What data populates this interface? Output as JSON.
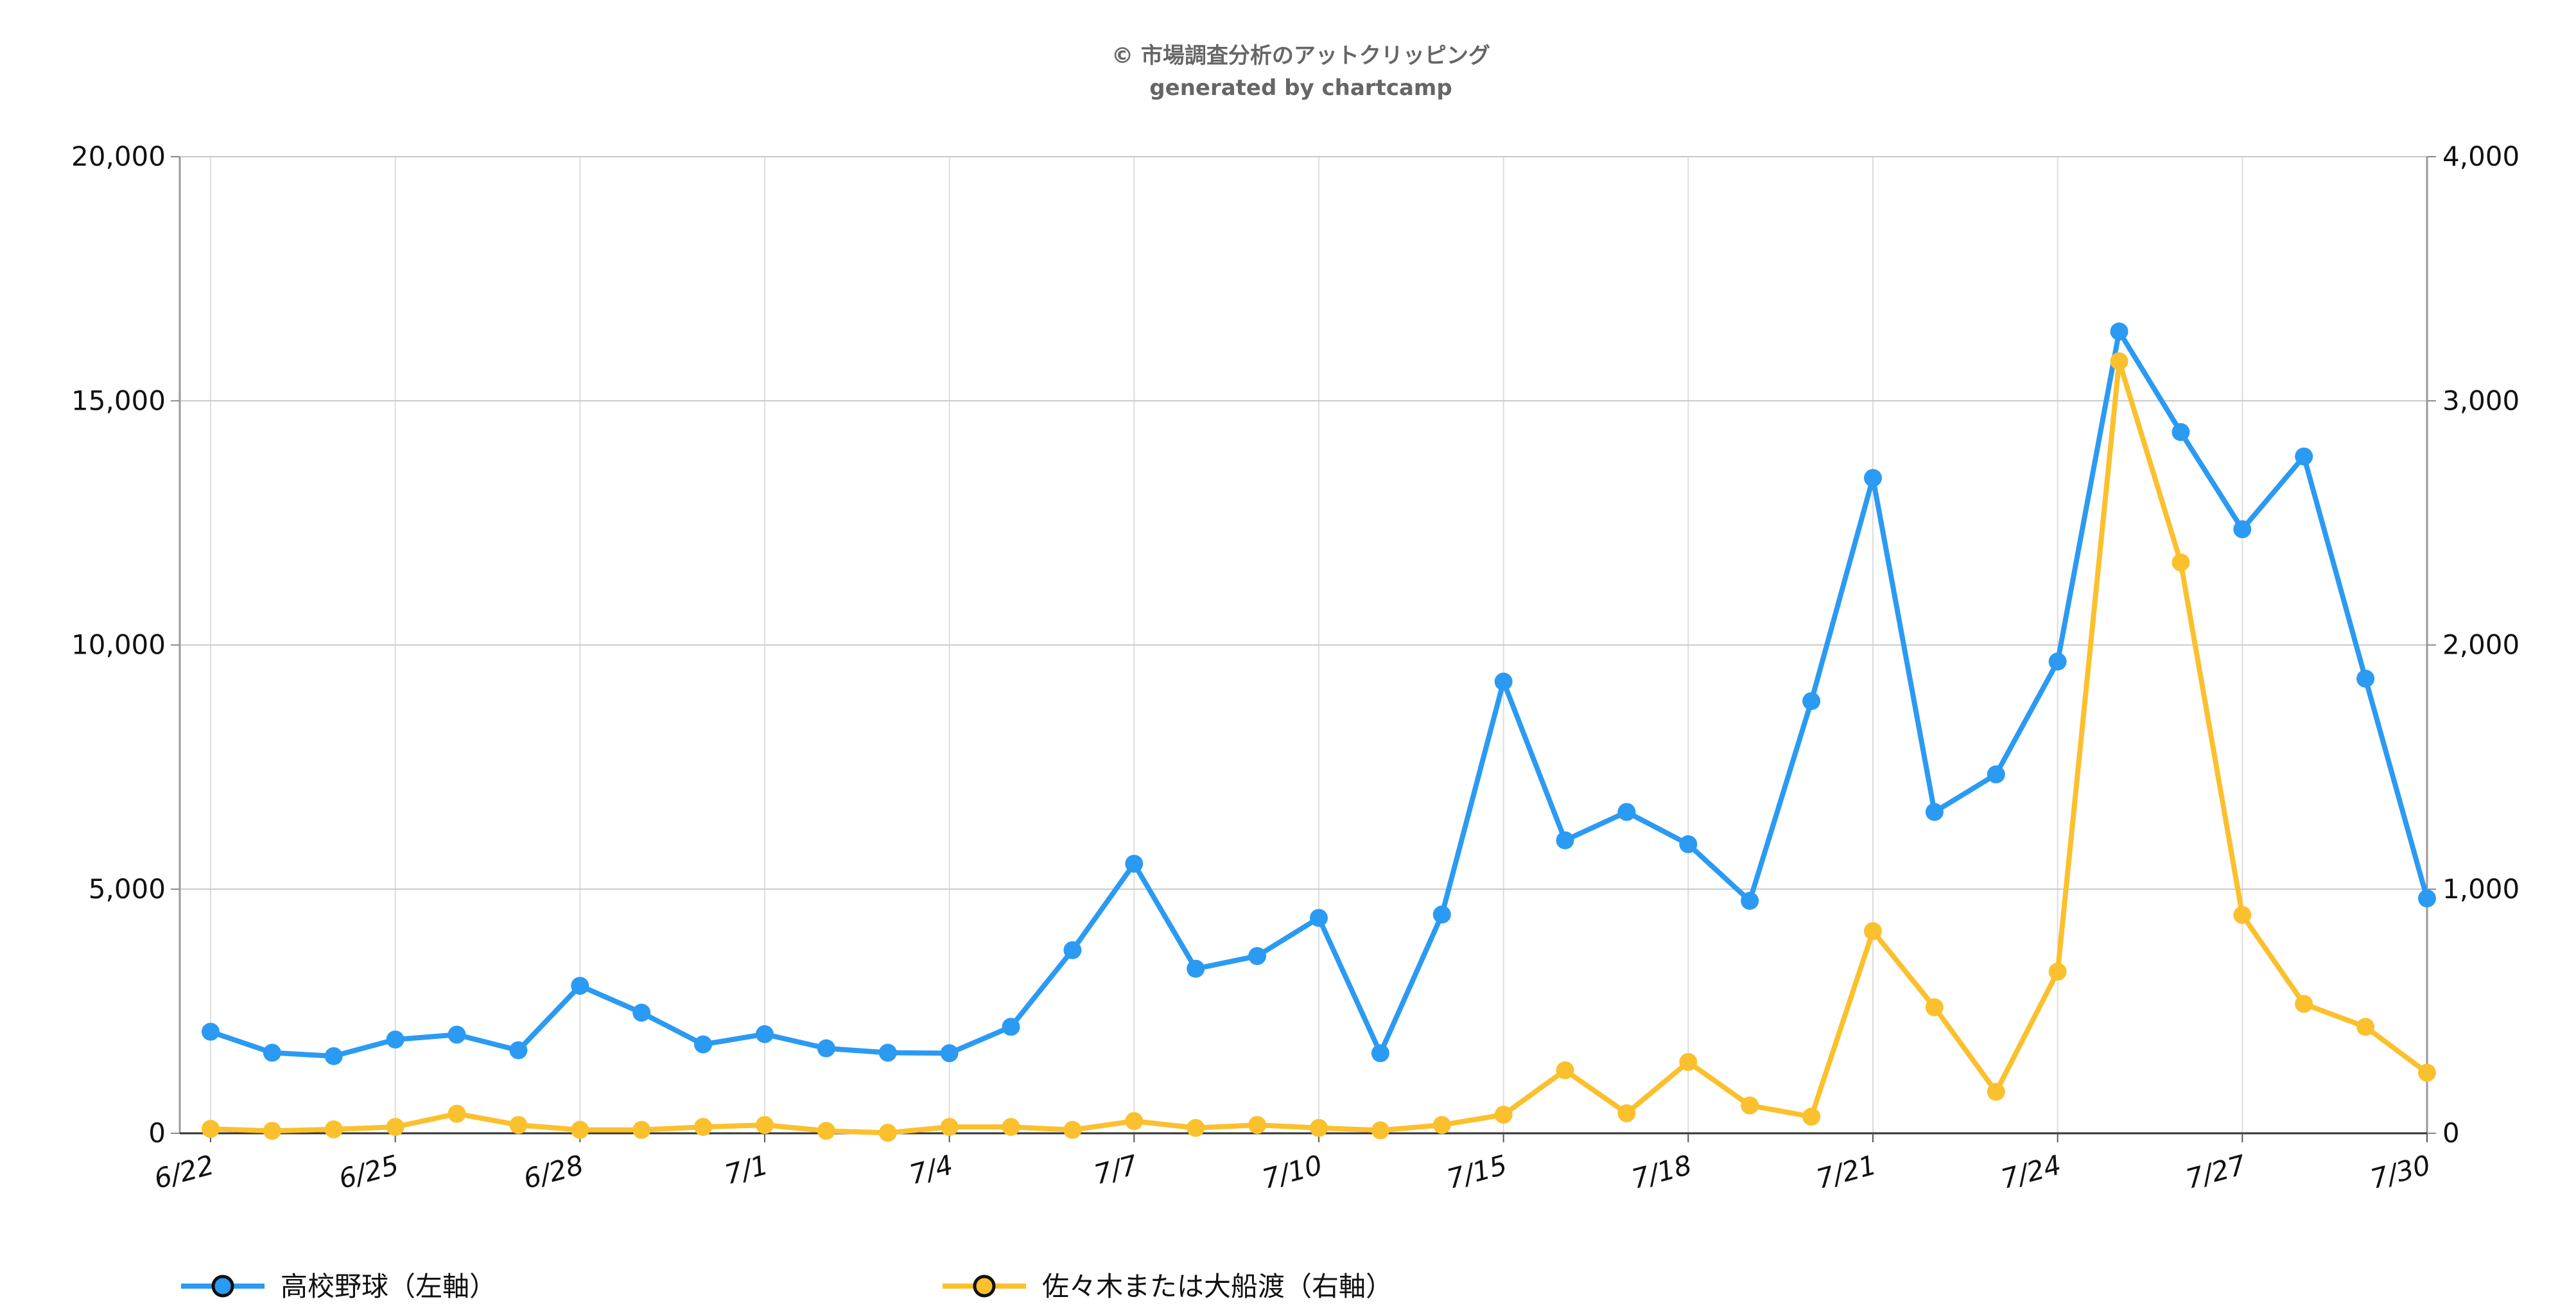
{
  "credit": {
    "line1": "© 市場調査分析のアットクリッピング",
    "line2": "generated by chartcamp"
  },
  "chart_data": {
    "type": "line",
    "title": "",
    "xlabel": "",
    "ylabel_left": "",
    "ylabel_right": "",
    "x": [
      "6/22",
      "6/23",
      "6/24",
      "6/25",
      "6/26",
      "6/27",
      "6/28",
      "6/29",
      "6/30",
      "7/1",
      "7/2",
      "7/3",
      "7/4",
      "7/5",
      "7/6",
      "7/7",
      "7/8",
      "7/9",
      "7/10",
      "7/11",
      "7/14",
      "7/15",
      "7/16",
      "7/17",
      "7/18",
      "7/19",
      "7/20",
      "7/21",
      "7/22",
      "7/23",
      "7/24",
      "7/25",
      "7/26",
      "7/27",
      "7/28",
      "7/29",
      "7/30"
    ],
    "x_tick_labels": [
      "6/22",
      "6/25",
      "6/28",
      "7/1",
      "7/4",
      "7/7",
      "7/10",
      "7/15",
      "7/18",
      "7/21",
      "7/24",
      "7/27",
      "7/30"
    ],
    "y_left": {
      "lim": [
        0,
        20000
      ],
      "ticks": [
        0,
        5000,
        10000,
        15000,
        20000
      ],
      "tick_labels": [
        "0",
        "5,000",
        "10,000",
        "15,000",
        "20,000"
      ]
    },
    "y_right": {
      "lim": [
        0,
        4000
      ],
      "ticks": [
        0,
        1000,
        2000,
        3000,
        4000
      ],
      "tick_labels": [
        "0",
        "1,000",
        "2,000",
        "3,000",
        "4,000"
      ]
    },
    "grid": true,
    "legend_position": "bottom",
    "series": [
      {
        "name": "高校野球（左軸）",
        "axis": "left",
        "color": "#2b9af3",
        "values": [
          2080,
          1650,
          1580,
          1920,
          2020,
          1700,
          3020,
          2470,
          1820,
          2030,
          1740,
          1650,
          1640,
          2180,
          3750,
          5520,
          3370,
          3630,
          4410,
          1640,
          4480,
          9250,
          6000,
          6580,
          5920,
          4760,
          8850,
          13420,
          6580,
          7350,
          9660,
          16420,
          14360,
          12370,
          13860,
          9310,
          4810
        ]
      },
      {
        "name": "佐々木または大船渡（右軸）",
        "axis": "right",
        "color": "#fbc02d",
        "values": [
          18,
          10,
          16,
          26,
          80,
          34,
          14,
          14,
          26,
          34,
          10,
          2,
          26,
          26,
          14,
          50,
          22,
          34,
          22,
          12,
          34,
          76,
          258,
          82,
          292,
          114,
          68,
          828,
          516,
          170,
          662,
          3162,
          2338,
          894,
          530,
          436,
          248
        ]
      }
    ]
  }
}
